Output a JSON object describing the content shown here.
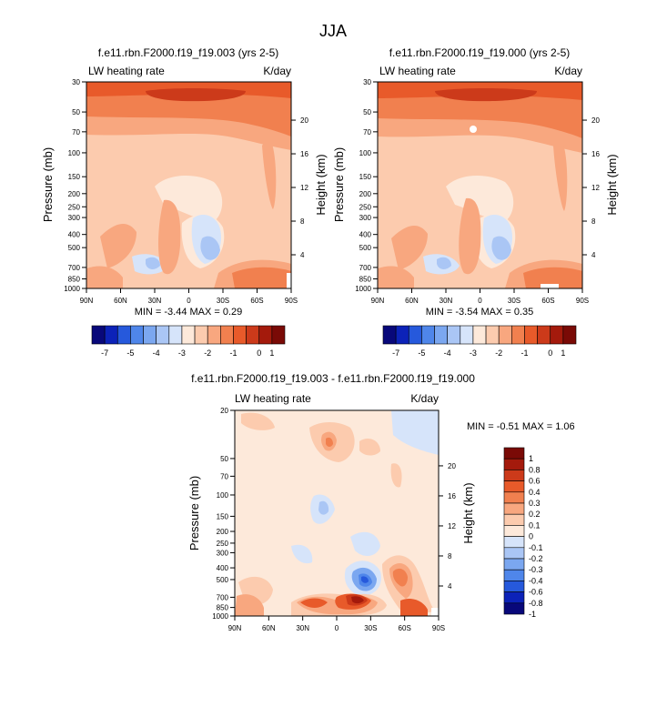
{
  "figure": {
    "title": "JJA"
  },
  "chart_data": [
    {
      "type": "heatmap",
      "title": "f.e11.rbn.F2000.f19_f19.003 (yrs 2-5)",
      "left_label": "LW heating rate",
      "right_label": "K/day",
      "xlabel": "",
      "ylabel": "Pressure (mb)",
      "y2label": "Height (km)",
      "x_ticks": [
        "90N",
        "60N",
        "30N",
        "0",
        "30S",
        "60S",
        "90S"
      ],
      "y_ticks": [
        30,
        50,
        70,
        100,
        150,
        200,
        250,
        300,
        400,
        500,
        700,
        850,
        1000
      ],
      "y2_ticks": [
        20,
        16,
        12,
        8,
        4
      ],
      "ylim": [
        1000,
        30
      ],
      "min_max_text": "MIN = -3.44 MAX = 0.29",
      "colorbar": {
        "orientation": "horizontal",
        "labels": [
          "-7",
          "-5",
          "-4",
          "-3",
          "-2",
          "-1",
          "0",
          "1"
        ]
      }
    },
    {
      "type": "heatmap",
      "title": "f.e11.rbn.F2000.f19_f19.000 (yrs 2-5)",
      "left_label": "LW heating rate",
      "right_label": "K/day",
      "xlabel": "",
      "ylabel": "Pressure (mb)",
      "y2label": "Height (km)",
      "x_ticks": [
        "90N",
        "60N",
        "30N",
        "0",
        "30S",
        "60S",
        "90S"
      ],
      "y_ticks": [
        30,
        50,
        70,
        100,
        150,
        200,
        250,
        300,
        400,
        500,
        700,
        850,
        1000
      ],
      "y2_ticks": [
        20,
        16,
        12,
        8,
        4
      ],
      "ylim": [
        1000,
        30
      ],
      "min_max_text": "MIN = -3.54 MAX = 0.35",
      "colorbar": {
        "orientation": "horizontal",
        "labels": [
          "-7",
          "-5",
          "-4",
          "-3",
          "-2",
          "-1",
          "0",
          "1"
        ]
      }
    },
    {
      "type": "heatmap",
      "title": "f.e11.rbn.F2000.f19_f19.003 - f.e11.rbn.F2000.f19_f19.000",
      "left_label": "LW heating rate",
      "right_label": "K/day",
      "xlabel": "",
      "ylabel": "Pressure (mb)",
      "y2label": "Height (km)",
      "x_ticks": [
        "90N",
        "60N",
        "30N",
        "0",
        "30S",
        "60S",
        "90S"
      ],
      "y_ticks": [
        20,
        50,
        70,
        100,
        150,
        200,
        250,
        300,
        400,
        500,
        700,
        850,
        1000
      ],
      "y2_ticks": [
        20,
        16,
        12,
        8,
        4
      ],
      "ylim": [
        1000,
        20
      ],
      "min_max_text": "MIN = -0.51 MAX = 1.06",
      "colorbar": {
        "orientation": "vertical",
        "labels": [
          "1",
          "0.8",
          "0.6",
          "0.4",
          "0.3",
          "0.2",
          "0.1",
          "0",
          "-0.1",
          "-0.2",
          "-0.3",
          "-0.4",
          "-0.6",
          "-0.8",
          "-1"
        ]
      }
    }
  ],
  "colors": {
    "abs_scale": [
      "#08087a",
      "#0c22b8",
      "#2659dc",
      "#4f86ea",
      "#7ba7f0",
      "#aac6f5",
      "#d6e4fa",
      "#fde9da",
      "#fccbae",
      "#f8a77f",
      "#f1804f",
      "#e85a2a",
      "#cc3a1a",
      "#a41a0c",
      "#7a0a06"
    ],
    "diff_scale": [
      "#7a0a06",
      "#a41a0c",
      "#cc3a1a",
      "#e85a2a",
      "#f1804f",
      "#f8a77f",
      "#fccbae",
      "#fde9da",
      "#d6e4fa",
      "#aac6f5",
      "#7ba7f0",
      "#4f86ea",
      "#2659dc",
      "#0c22b8",
      "#08087a"
    ]
  }
}
